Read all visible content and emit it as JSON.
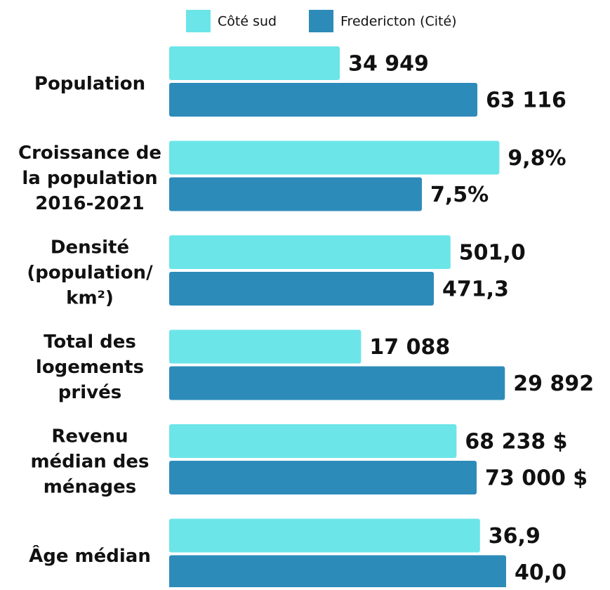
{
  "chart_data": {
    "type": "bar",
    "orientation": "horizontal",
    "categories": [
      [
        "Population"
      ],
      [
        "Croissance de",
        "la population",
        "2016-2021"
      ],
      [
        "Densité",
        "(population/",
        "km²)"
      ],
      [
        "Total des",
        "logements",
        "privés"
      ],
      [
        "Revenu",
        "médian des",
        "ménages"
      ],
      [
        "Âge médian"
      ]
    ],
    "xlims": [
      [
        0,
        69000
      ],
      [
        0,
        10
      ],
      [
        0,
        600
      ],
      [
        0,
        30000
      ],
      [
        0,
        80000
      ],
      [
        0,
        40
      ]
    ],
    "series": [
      {
        "name": "Côté sud",
        "color": "#6ce5e8",
        "values": [
          34949,
          9.8,
          501.0,
          17088,
          68238,
          36.9
        ],
        "value_labels": [
          "34 949",
          "9,8%",
          "501,0",
          "17 088",
          "68 238 $",
          "36,9"
        ]
      },
      {
        "name": "Fredericton (Cité)",
        "color": "#2d8bba",
        "values": [
          63116,
          7.5,
          471.3,
          29892,
          73000,
          40.0
        ],
        "value_labels": [
          "63 116",
          "7,5%",
          "471,3",
          "29 892",
          "73 000 $",
          "40,0"
        ]
      }
    ]
  }
}
